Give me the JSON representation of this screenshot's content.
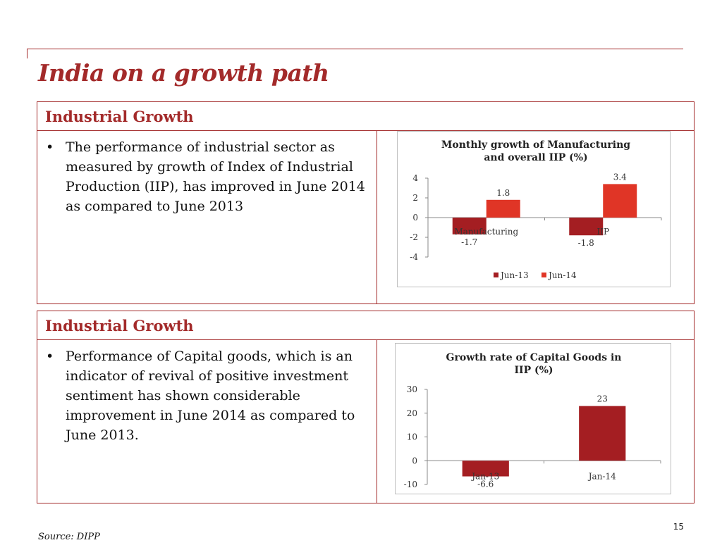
{
  "title": "India on a growth path",
  "panels": [
    {
      "heading": "Industrial Growth",
      "bullet": "The performance of industrial sector as measured by growth of Index of Industrial Production (IIP), has improved in June 2014 as compared to June 2013"
    },
    {
      "heading": "Industrial Growth",
      "bullet": "Performance of Capital goods, which is an indicator of revival of positive investment sentiment  has shown considerable improvement  in June 2014 as compared to  June 2013."
    }
  ],
  "source": "Source: DIPP",
  "page_number": "15",
  "colors": {
    "accent": "#a32a2a",
    "series_dark": "#a41e22",
    "series_light": "#e03526"
  },
  "chart_data": [
    {
      "type": "bar",
      "title": [
        "Monthly growth of Manufacturing",
        "and overall  IIP (%)"
      ],
      "categories": [
        "Manufacturing",
        "IIP"
      ],
      "series": [
        {
          "name": "Jun-13",
          "values": [
            -1.7,
            -1.8
          ],
          "labels": [
            "-1.7",
            "-1.8"
          ],
          "color": "#a41e22"
        },
        {
          "name": "Jun-14",
          "values": [
            1.8,
            3.4
          ],
          "labels": [
            "1.8",
            "3.4"
          ],
          "color": "#e03526"
        }
      ],
      "ylim": [
        -4,
        4
      ],
      "yticks": [
        4,
        2,
        0,
        -2,
        -4
      ],
      "legend": "bottom",
      "grid": false
    },
    {
      "type": "bar",
      "title": [
        "Growth rate of Capital Goods in",
        "IIP (%)"
      ],
      "categories": [
        "Jan-13",
        "Jan-14"
      ],
      "series": [
        {
          "values": [
            -6.6,
            23
          ],
          "labels": [
            "-6.6",
            "23"
          ],
          "color": "#a41e22"
        }
      ],
      "ylim": [
        -10,
        30
      ],
      "yticks": [
        30,
        20,
        10,
        0,
        -10
      ],
      "grid": false
    }
  ]
}
